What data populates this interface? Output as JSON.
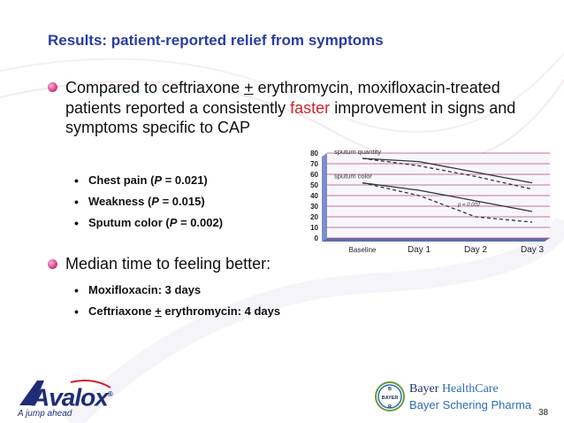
{
  "slide": {
    "title": "Results: patient-reported relief from symptoms",
    "bullet1": {
      "part1": "Compared to ceftriaxone ",
      "plusminus": "+",
      "part2": " erythromycin, moxifloxacin-treated patients reported a consistently ",
      "highlight": "faster",
      "part3": " improvement in signs and symptoms specific to CAP",
      "subs": [
        {
          "label": "Chest pain (",
          "p": "P",
          "value": " = 0.021)"
        },
        {
          "label": "Weakness (",
          "p": "P",
          "value": " = 0.015)"
        },
        {
          "label": "Sputum color (",
          "p": "P",
          "value": " = 0.002)"
        }
      ]
    },
    "bullet2": {
      "text": "Median time to feeling better:",
      "subs": [
        {
          "text": "Moxifloxacin: 3 days"
        },
        {
          "pre": "Ceftriaxone ",
          "plusminus": "+",
          "post": " erythromycin: 4 days"
        }
      ]
    },
    "page_number": "38",
    "accent_color": "#d1232a",
    "title_color": "#2b3d9e"
  },
  "footer": {
    "brand": "Avalox",
    "registered": "®",
    "tagline": "A jump ahead",
    "bayer_healthcare_1": "Bayer ",
    "bayer_healthcare_2": "HealthCare",
    "bayer_schering": "Bayer Schering Pharma",
    "bayer_logo_text": "BAYER"
  },
  "chart_data": {
    "type": "line",
    "categories": [
      "Baseline",
      "Day 1",
      "Day 2",
      "Day 3"
    ],
    "ylim": [
      0,
      80
    ],
    "yticks": [
      "80",
      "70",
      "60",
      "50",
      "40",
      "30",
      "20",
      "10",
      "0"
    ],
    "series": [
      {
        "name": "sputum quantity",
        "values": [
          75,
          72,
          62,
          52
        ]
      },
      {
        "name": "sputum quantity",
        "values": [
          75,
          68,
          58,
          46
        ]
      },
      {
        "name": "sputum color",
        "values": [
          52,
          45,
          35,
          25
        ]
      },
      {
        "name": "sputum color",
        "values": [
          52,
          40,
          20,
          15
        ]
      }
    ],
    "annotation": "p = 0.002"
  }
}
